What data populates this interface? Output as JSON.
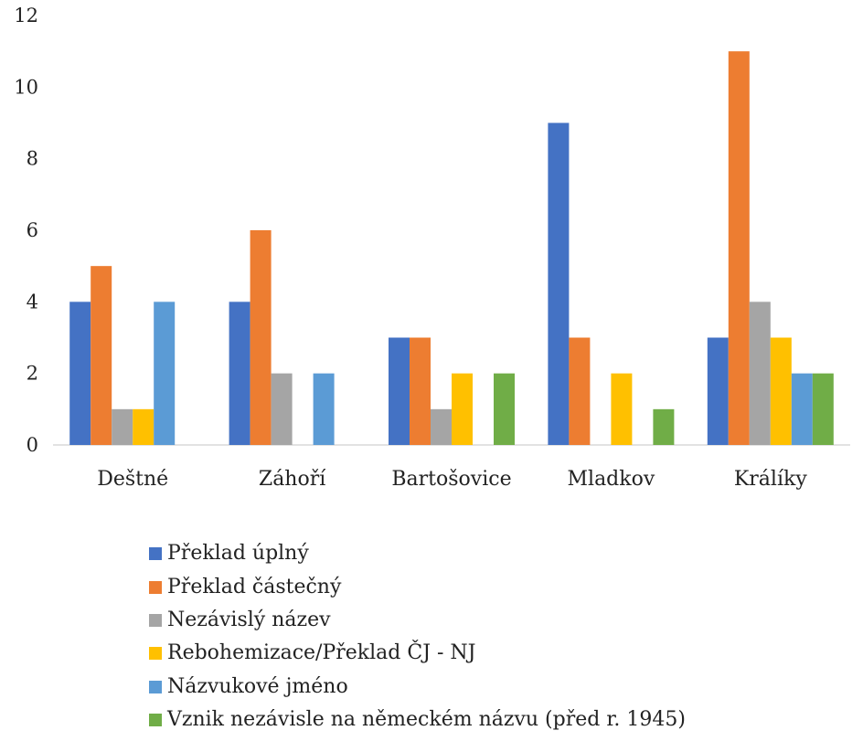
{
  "chart_data": {
    "type": "bar",
    "categories": [
      "Deštné",
      "Záhoří",
      "Bartošovice",
      "Mladkov",
      "Králíky"
    ],
    "series": [
      {
        "name": "Překlad úplný",
        "color": "#4472C4",
        "values": [
          4,
          4,
          3,
          9,
          3
        ]
      },
      {
        "name": "Překlad částečný",
        "color": "#ED7D31",
        "values": [
          5,
          6,
          3,
          3,
          11
        ]
      },
      {
        "name": "Nezávislý název",
        "color": "#A5A5A5",
        "values": [
          1,
          2,
          1,
          0,
          4
        ]
      },
      {
        "name": "Rebohemizace/Překlad ČJ - NJ",
        "color": "#FFC000",
        "values": [
          1,
          0,
          2,
          2,
          3
        ]
      },
      {
        "name": "Názvukové jméno",
        "color": "#5B9BD5",
        "values": [
          4,
          2,
          0,
          0,
          2
        ]
      },
      {
        "name": "Vznik nezávisle na německém názvu (před r. 1945)",
        "color": "#70AD47",
        "values": [
          0,
          0,
          2,
          1,
          2
        ]
      }
    ],
    "y_ticks": [
      "0",
      "2",
      "4",
      "6",
      "8",
      "10",
      "12"
    ],
    "ylim": [
      0,
      12
    ],
    "grid": false,
    "legend_position": "bottom"
  }
}
